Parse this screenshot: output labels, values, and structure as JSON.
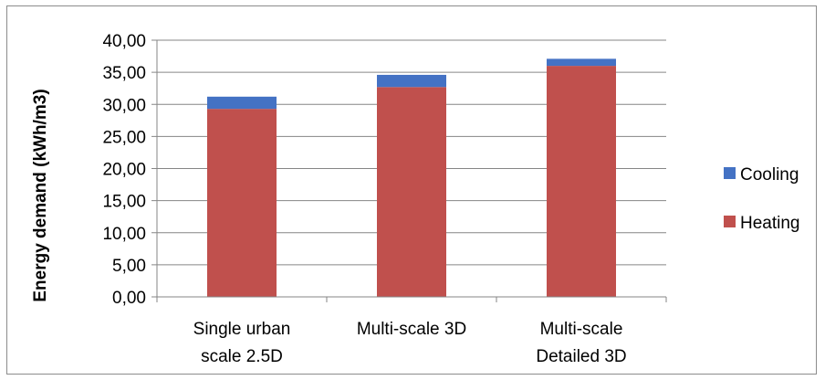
{
  "chart_data": {
    "type": "bar",
    "stacked": true,
    "categories": [
      [
        "Single urban",
        "scale 2.5D"
      ],
      [
        "Multi-scale 3D"
      ],
      [
        "Multi-scale",
        "Detailed 3D"
      ]
    ],
    "series": [
      {
        "name": "Heating",
        "color": "#c0504d",
        "values": [
          29.3,
          32.7,
          36.0
        ]
      },
      {
        "name": "Cooling",
        "color": "#4472c4",
        "values": [
          1.9,
          1.9,
          1.1
        ]
      }
    ],
    "ylabel": "Energy demand (kWh/m3)",
    "ylim": [
      0,
      40
    ],
    "yticks": [
      "0,00",
      "5,00",
      "10,00",
      "15,00",
      "20,00",
      "25,00",
      "30,00",
      "35,00",
      "40,00"
    ],
    "grid": true,
    "legend_position": "right",
    "legend": [
      {
        "name": "Cooling",
        "color": "#4472c4"
      },
      {
        "name": "Heating",
        "color": "#c0504d"
      }
    ]
  }
}
